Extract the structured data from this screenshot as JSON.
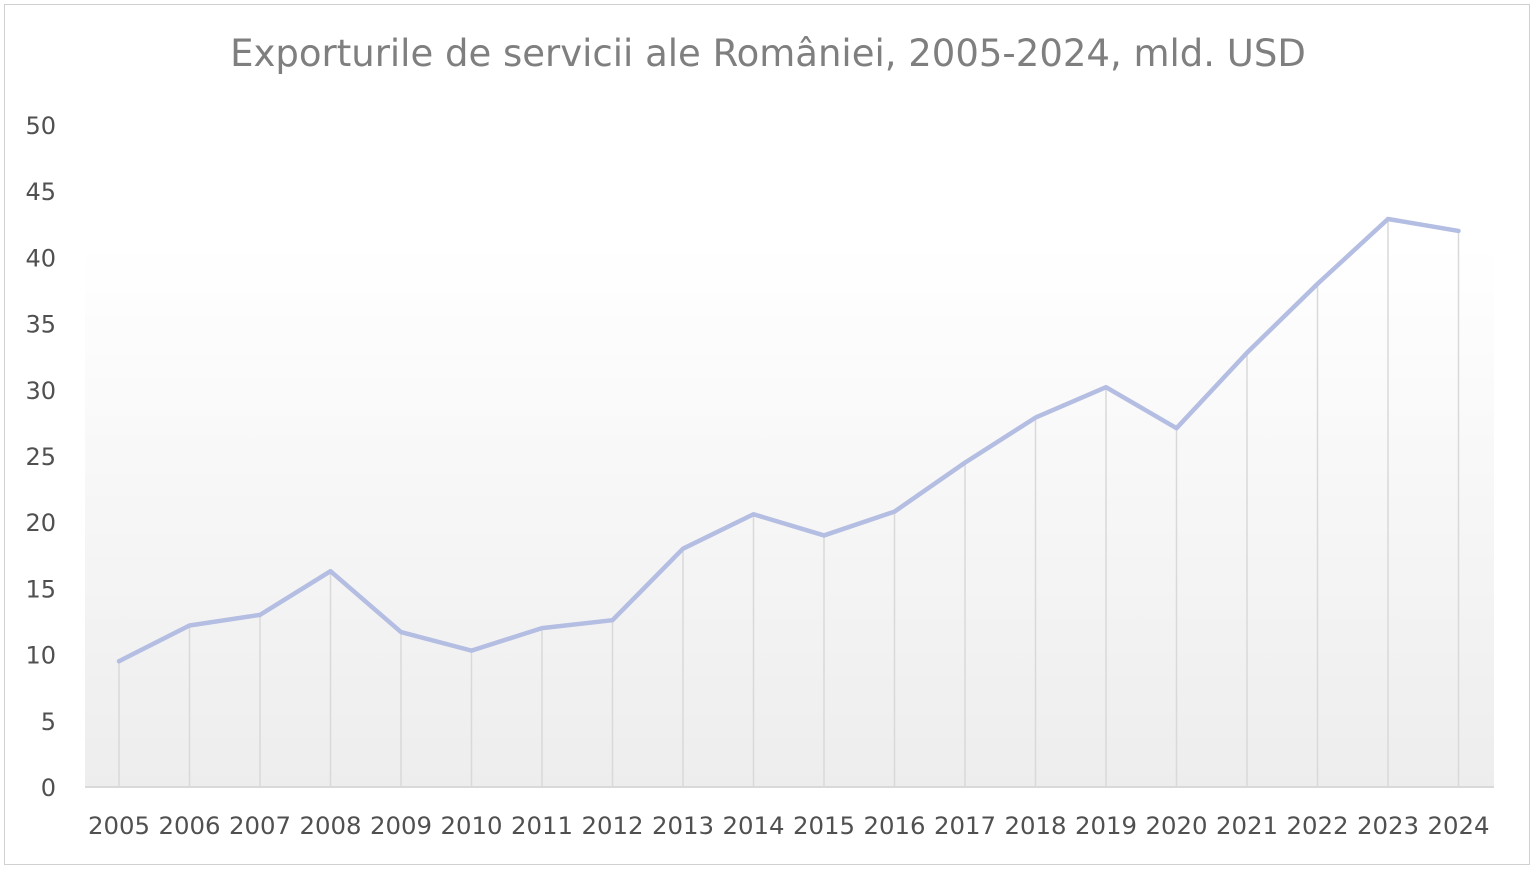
{
  "chart_data": {
    "type": "line",
    "title": "Exporturile de servicii ale României, 2005-2024, mld. USD",
    "xlabel": "",
    "ylabel": "",
    "categories": [
      "2005",
      "2006",
      "2007",
      "2008",
      "2009",
      "2010",
      "2011",
      "2012",
      "2013",
      "2014",
      "2015",
      "2016",
      "2017",
      "2018",
      "2019",
      "2020",
      "2021",
      "2022",
      "2023",
      "2024"
    ],
    "series": [
      {
        "values": [
          9.5,
          12.2,
          13.0,
          16.3,
          11.7,
          10.3,
          12.0,
          12.6,
          18.0,
          20.6,
          19.0,
          20.8,
          24.5,
          27.9,
          30.2,
          27.1,
          32.8,
          38.0,
          42.9,
          42.0
        ]
      }
    ],
    "ylim": [
      0,
      50
    ],
    "yticks": [
      "0",
      "5",
      "10",
      "15",
      "20",
      "25",
      "30",
      "35",
      "40",
      "45",
      "50"
    ],
    "grid": "vertical drop lines at each category",
    "legend": "none",
    "colors": {
      "line": "#b4bde2",
      "droplines": "#d9d9d9",
      "axis": "#d9d9d9",
      "plot_gradient_top": "#ffffff",
      "plot_gradient_bottom": "#ededed"
    }
  }
}
